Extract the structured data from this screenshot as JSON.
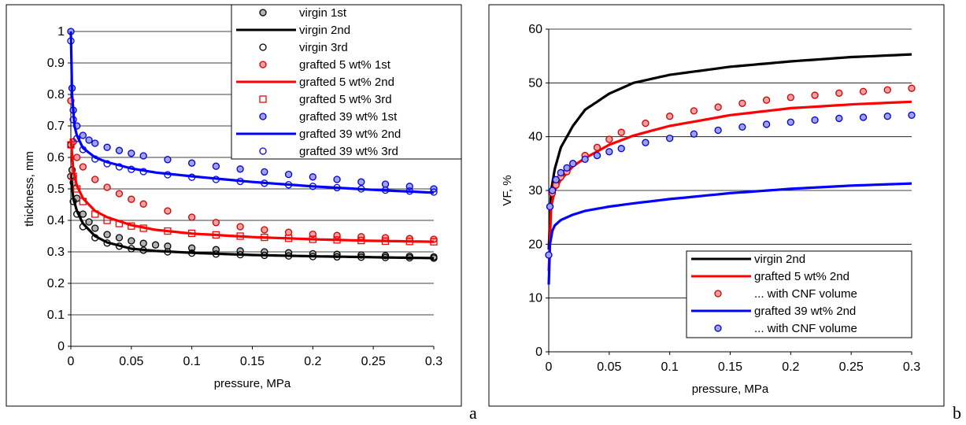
{
  "panel_labels": [
    "a",
    "b"
  ],
  "chart_data": [
    {
      "type": "scatter",
      "title": "",
      "xlabel": "pressure, MPa",
      "ylabel": "thickness, mm",
      "xlim": [
        0,
        0.3
      ],
      "ylim": [
        0,
        1
      ],
      "xticks": [
        "0",
        "0.05",
        "0.1",
        "0.15",
        "0.2",
        "0.25",
        "0.3"
      ],
      "yticks": [
        "0",
        "0.1",
        "0.2",
        "0.3",
        "0.4",
        "0.5",
        "0.6",
        "0.7",
        "0.8",
        "0.9",
        "1"
      ],
      "grid": "horizontal",
      "legend_position": "top-right",
      "series": [
        {
          "name": "virgin 1st",
          "style": "circle-filled",
          "color": "#000000",
          "fill": "#b3b3b3",
          "x": [
            0,
            0.001,
            0.002,
            0.005,
            0.01,
            0.015,
            0.02,
            0.03,
            0.04,
            0.05,
            0.06,
            0.07,
            0.08,
            0.1,
            0.12,
            0.14,
            0.16,
            0.18,
            0.2,
            0.22,
            0.24,
            0.26,
            0.28,
            0.3
          ],
          "y": [
            0.64,
            0.56,
            0.52,
            0.47,
            0.42,
            0.395,
            0.375,
            0.355,
            0.345,
            0.335,
            0.327,
            0.322,
            0.318,
            0.312,
            0.307,
            0.303,
            0.3,
            0.297,
            0.294,
            0.292,
            0.29,
            0.288,
            0.286,
            0.284
          ]
        },
        {
          "name": "virgin 2nd",
          "style": "line",
          "color": "#000000",
          "x": [
            0,
            0.002,
            0.005,
            0.01,
            0.02,
            0.03,
            0.05,
            0.07,
            0.1,
            0.15,
            0.2,
            0.25,
            0.3
          ],
          "y": [
            0.55,
            0.47,
            0.43,
            0.39,
            0.35,
            0.33,
            0.31,
            0.303,
            0.297,
            0.29,
            0.286,
            0.283,
            0.28
          ]
        },
        {
          "name": "virgin 3rd",
          "style": "circle-open",
          "color": "#000000",
          "x": [
            0,
            0.002,
            0.005,
            0.01,
            0.02,
            0.03,
            0.04,
            0.05,
            0.06,
            0.08,
            0.1,
            0.12,
            0.14,
            0.16,
            0.18,
            0.2,
            0.22,
            0.24,
            0.26,
            0.28,
            0.3
          ],
          "y": [
            0.54,
            0.46,
            0.42,
            0.38,
            0.345,
            0.328,
            0.318,
            0.31,
            0.305,
            0.3,
            0.296,
            0.293,
            0.291,
            0.289,
            0.287,
            0.285,
            0.284,
            0.283,
            0.282,
            0.281,
            0.28
          ]
        },
        {
          "name": "grafted 5 wt% 1st",
          "style": "circle-filled",
          "color": "#cc0000",
          "fill": "#f0a0a0",
          "x": [
            0,
            0.002,
            0.005,
            0.01,
            0.02,
            0.03,
            0.04,
            0.05,
            0.06,
            0.08,
            0.1,
            0.12,
            0.14,
            0.16,
            0.18,
            0.2,
            0.22,
            0.24,
            0.26,
            0.28,
            0.3
          ],
          "y": [
            0.78,
            0.65,
            0.6,
            0.57,
            0.53,
            0.505,
            0.485,
            0.467,
            0.452,
            0.43,
            0.41,
            0.393,
            0.38,
            0.37,
            0.362,
            0.356,
            0.352,
            0.348,
            0.345,
            0.342,
            0.34
          ]
        },
        {
          "name": "grafted 5 wt% 2nd",
          "style": "line",
          "color": "#ff0000",
          "x": [
            0,
            0.002,
            0.005,
            0.01,
            0.02,
            0.03,
            0.05,
            0.07,
            0.1,
            0.15,
            0.2,
            0.25,
            0.3
          ],
          "y": [
            0.66,
            0.56,
            0.51,
            0.47,
            0.43,
            0.41,
            0.385,
            0.37,
            0.358,
            0.347,
            0.34,
            0.335,
            0.332
          ]
        },
        {
          "name": "grafted 5 wt% 3rd",
          "style": "square-open",
          "color": "#ff0000",
          "x": [
            0,
            0.002,
            0.005,
            0.01,
            0.02,
            0.03,
            0.04,
            0.05,
            0.06,
            0.08,
            0.1,
            0.12,
            0.14,
            0.16,
            0.18,
            0.2,
            0.22,
            0.24,
            0.26,
            0.28,
            0.3
          ],
          "y": [
            0.64,
            0.54,
            0.5,
            0.46,
            0.42,
            0.4,
            0.39,
            0.382,
            0.375,
            0.366,
            0.359,
            0.354,
            0.35,
            0.346,
            0.343,
            0.34,
            0.338,
            0.336,
            0.334,
            0.333,
            0.332
          ]
        },
        {
          "name": "grafted 39 wt% 1st",
          "style": "circle-filled",
          "color": "#0000cc",
          "fill": "#a0a0f0",
          "x": [
            0,
            0.001,
            0.002,
            0.005,
            0.01,
            0.015,
            0.02,
            0.03,
            0.04,
            0.05,
            0.06,
            0.08,
            0.1,
            0.12,
            0.14,
            0.16,
            0.18,
            0.2,
            0.22,
            0.24,
            0.26,
            0.28,
            0.3
          ],
          "y": [
            1.0,
            0.82,
            0.75,
            0.7,
            0.67,
            0.655,
            0.645,
            0.632,
            0.622,
            0.613,
            0.605,
            0.593,
            0.582,
            0.572,
            0.563,
            0.554,
            0.546,
            0.538,
            0.53,
            0.522,
            0.515,
            0.508,
            0.5
          ]
        },
        {
          "name": "grafted 39 wt% 2nd",
          "style": "line",
          "color": "#0000ff",
          "x": [
            0,
            0.001,
            0.003,
            0.005,
            0.01,
            0.02,
            0.03,
            0.05,
            0.07,
            0.1,
            0.15,
            0.2,
            0.25,
            0.3
          ],
          "y": [
            1.0,
            0.8,
            0.7,
            0.67,
            0.63,
            0.6,
            0.585,
            0.565,
            0.552,
            0.54,
            0.522,
            0.508,
            0.497,
            0.488
          ]
        },
        {
          "name": "grafted 39 wt% 3rd",
          "style": "circle-open",
          "color": "#0000ff",
          "x": [
            0,
            0.002,
            0.005,
            0.01,
            0.02,
            0.03,
            0.04,
            0.05,
            0.06,
            0.08,
            0.1,
            0.12,
            0.14,
            0.16,
            0.18,
            0.2,
            0.22,
            0.24,
            0.26,
            0.28,
            0.3
          ],
          "y": [
            0.97,
            0.72,
            0.66,
            0.625,
            0.595,
            0.58,
            0.57,
            0.562,
            0.555,
            0.545,
            0.537,
            0.53,
            0.524,
            0.518,
            0.513,
            0.508,
            0.504,
            0.5,
            0.496,
            0.493,
            0.49
          ]
        }
      ]
    },
    {
      "type": "line",
      "title": "",
      "xlabel": "pressure, MPa",
      "ylabel": "VF, %",
      "xlim": [
        0,
        0.3
      ],
      "ylim": [
        0,
        60
      ],
      "xticks": [
        "0",
        "0.05",
        "0.1",
        "0.15",
        "0.2",
        "0.25",
        "0.3"
      ],
      "yticks": [
        "0",
        "10",
        "20",
        "30",
        "40",
        "50",
        "60"
      ],
      "grid": "horizontal",
      "legend_position": "bottom-right",
      "series": [
        {
          "name": "virgin 2nd",
          "style": "line",
          "color": "#000000",
          "x": [
            0,
            0.002,
            0.005,
            0.01,
            0.02,
            0.03,
            0.05,
            0.07,
            0.1,
            0.15,
            0.2,
            0.25,
            0.3
          ],
          "y": [
            19,
            30,
            34,
            38,
            42,
            45,
            48,
            50,
            51.5,
            53,
            54,
            54.8,
            55.3
          ]
        },
        {
          "name": "grafted 5 wt% 2nd",
          "style": "line",
          "color": "#ff0000",
          "x": [
            0,
            0.002,
            0.005,
            0.01,
            0.02,
            0.03,
            0.05,
            0.07,
            0.1,
            0.15,
            0.2,
            0.25,
            0.3
          ],
          "y": [
            15,
            27,
            30,
            32,
            34.5,
            36,
            38.5,
            40.2,
            42,
            44,
            45.3,
            46,
            46.5
          ]
        },
        {
          "name": "... with CNF volume",
          "style": "circle-filled",
          "color": "#cc0000",
          "fill": "#f0a0a0",
          "x": [
            0.001,
            0.003,
            0.006,
            0.01,
            0.015,
            0.02,
            0.03,
            0.04,
            0.05,
            0.06,
            0.08,
            0.1,
            0.12,
            0.14,
            0.16,
            0.18,
            0.2,
            0.22,
            0.24,
            0.26,
            0.28,
            0.3
          ],
          "y": [
            27,
            29.5,
            31,
            32.5,
            33.5,
            35,
            36.5,
            38,
            39.5,
            40.8,
            42.5,
            43.8,
            44.8,
            45.5,
            46.2,
            46.8,
            47.3,
            47.7,
            48.1,
            48.4,
            48.7,
            49
          ]
        },
        {
          "name": "grafted 39 wt% 2nd",
          "style": "line",
          "color": "#0000ff",
          "x": [
            0,
            0.001,
            0.003,
            0.005,
            0.01,
            0.02,
            0.03,
            0.05,
            0.07,
            0.1,
            0.15,
            0.2,
            0.25,
            0.3
          ],
          "y": [
            12.5,
            20,
            22.5,
            23.5,
            24.5,
            25.5,
            26.2,
            27,
            27.6,
            28.4,
            29.5,
            30.3,
            30.9,
            31.3
          ]
        },
        {
          "name": "... with CNF volume",
          "style": "circle-filled",
          "color": "#0000cc",
          "fill": "#a0a0f0",
          "x": [
            0,
            0.001,
            0.003,
            0.006,
            0.01,
            0.015,
            0.02,
            0.03,
            0.04,
            0.05,
            0.06,
            0.08,
            0.1,
            0.12,
            0.14,
            0.16,
            0.18,
            0.2,
            0.22,
            0.24,
            0.26,
            0.28,
            0.3
          ],
          "y": [
            18,
            27,
            30,
            32,
            33.3,
            34.2,
            35,
            35.8,
            36.5,
            37.2,
            37.8,
            38.9,
            39.7,
            40.5,
            41.2,
            41.8,
            42.3,
            42.7,
            43.1,
            43.4,
            43.6,
            43.8,
            44
          ]
        }
      ]
    }
  ]
}
